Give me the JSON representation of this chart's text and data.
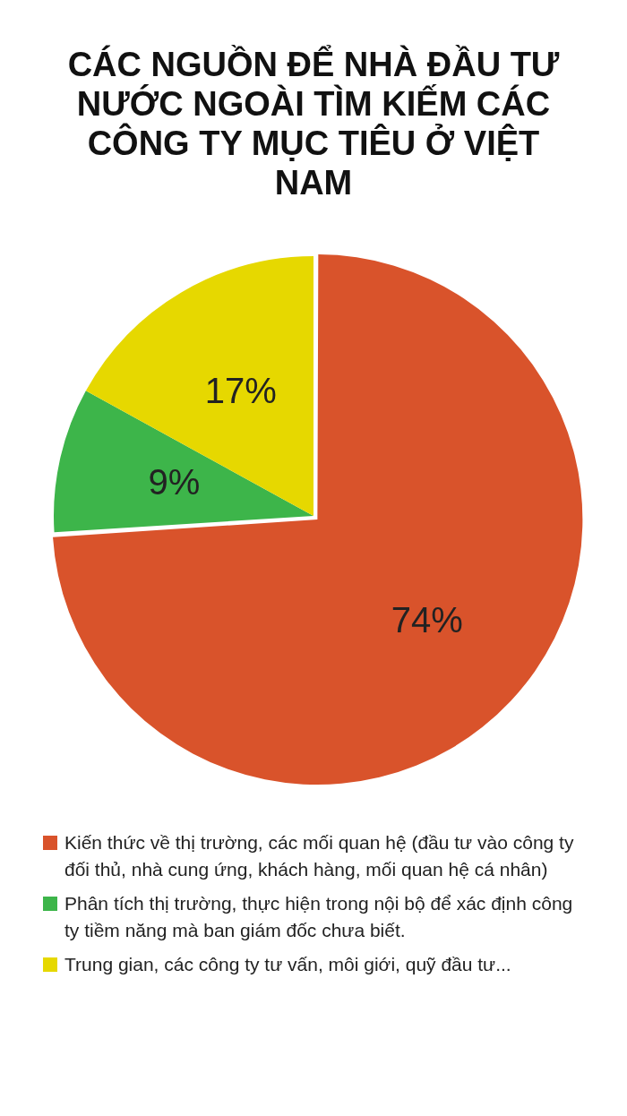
{
  "chart_data": {
    "type": "pie",
    "title": "CÁC NGUỒN ĐỂ NHÀ ĐẦU TƯ NƯỚC NGOÀI TÌM KIẾM CÁC CÔNG TY MỤC TIÊU Ở VIỆT NAM",
    "categories": [
      "Kiến thức về thị trường, các mối quan hệ (đầu tư vào công ty đối thủ, nhà cung ứng, khách hàng, mối quan hệ cá nhân)",
      "Phân tích thị trường, thực hiện trong nội bộ để xác định công ty tiềm năng mà ban giám đốc chưa biết.",
      "Trung gian, các công ty tư vấn, môi giới, quỹ đầu tư..."
    ],
    "values": [
      74,
      9,
      17
    ],
    "colors": [
      "#d9532b",
      "#3db54a",
      "#e6d800"
    ],
    "value_labels": [
      "74%",
      "9%",
      "17%"
    ],
    "legend": "bottom"
  }
}
